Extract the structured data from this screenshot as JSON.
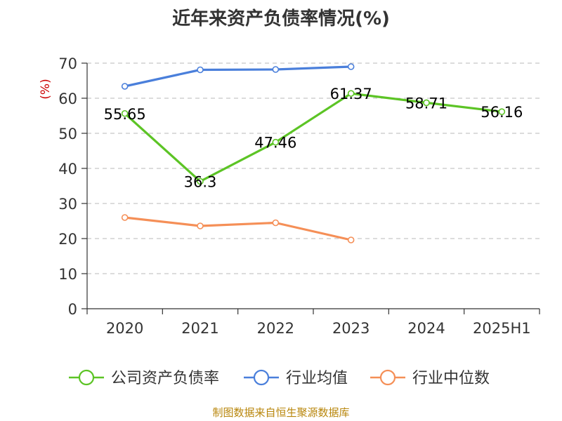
{
  "chart_data": {
    "type": "line",
    "title": "近年来资产负债率情况(%)",
    "ylabel": "(%)",
    "categories": [
      "2020",
      "2021",
      "2022",
      "2023",
      "2024",
      "2025H1"
    ],
    "ylim": [
      0,
      70
    ],
    "yticks": [
      0,
      10,
      20,
      30,
      40,
      50,
      60,
      70
    ],
    "grid": true,
    "legend_position": "bottom",
    "series": [
      {
        "name": "公司资产负债率",
        "color": "#5cc425",
        "values": [
          55.65,
          36.3,
          47.46,
          61.37,
          58.71,
          56.16
        ],
        "labels": [
          "55.65",
          "36.3",
          "47.46",
          "61.37",
          "58.71",
          "56.16"
        ]
      },
      {
        "name": "行业均值",
        "color": "#4a7fdb",
        "values": [
          63.4,
          68.1,
          68.2,
          69.0,
          null,
          null
        ]
      },
      {
        "name": "行业中位数",
        "color": "#f58f57",
        "values": [
          26.0,
          23.6,
          24.5,
          19.6,
          null,
          null
        ]
      }
    ],
    "source": "制图数据来自恒生聚源数据库"
  }
}
